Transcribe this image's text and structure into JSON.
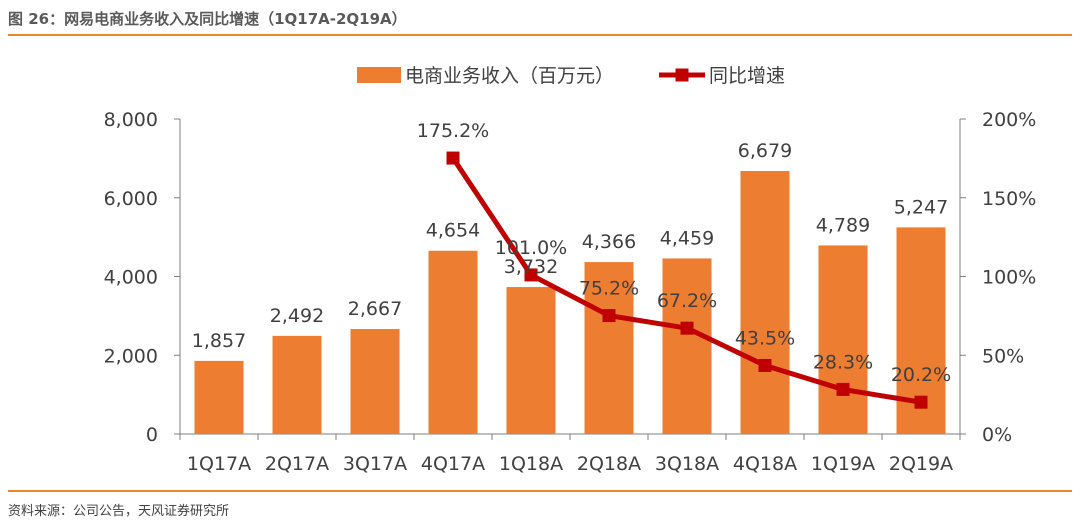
{
  "figure": {
    "title": "图 26：网易电商业务收入及同比增速（1Q17A-2Q19A）",
    "source": "资料来源：公司公告，天风证券研究所"
  },
  "colors": {
    "bar": "#ED7D31",
    "line": "#C00000",
    "rule": "#E8872F",
    "axis": "#7F7F7F",
    "text": "#404040"
  },
  "chart_data": {
    "type": "bar+line",
    "categories": [
      "1Q17A",
      "2Q17A",
      "3Q17A",
      "4Q17A",
      "1Q18A",
      "2Q18A",
      "3Q18A",
      "4Q18A",
      "1Q19A",
      "2Q19A"
    ],
    "series": [
      {
        "name": "电商业务收入（百万元）",
        "type": "bar",
        "axis": "left",
        "values": [
          1857,
          2492,
          2667,
          4654,
          3732,
          4366,
          4459,
          6679,
          4789,
          5247
        ],
        "labels": [
          "1,857",
          "2,492",
          "2,667",
          "4,654",
          "3,732",
          "4,366",
          "4,459",
          "6,679",
          "4,789",
          "5,247"
        ]
      },
      {
        "name": "同比增速",
        "type": "line",
        "axis": "right",
        "values": [
          null,
          null,
          null,
          175.2,
          101.0,
          75.2,
          67.2,
          43.5,
          28.3,
          20.2
        ],
        "labels": [
          "",
          "",
          "",
          "175.2%",
          "101.0%",
          "75.2%",
          "67.2%",
          "43.5%",
          "28.3%",
          "20.2%"
        ]
      }
    ],
    "y_left": {
      "min": 0,
      "max": 8000,
      "ticks": [
        0,
        2000,
        4000,
        6000,
        8000
      ],
      "tick_labels": [
        "0",
        "2,000",
        "4,000",
        "6,000",
        "8,000"
      ]
    },
    "y_right": {
      "min": 0,
      "max": 200,
      "ticks": [
        0,
        50,
        100,
        150,
        200
      ],
      "tick_labels": [
        "0%",
        "50%",
        "100%",
        "150%",
        "200%"
      ]
    },
    "legend_position": "top-center",
    "grid": false
  }
}
